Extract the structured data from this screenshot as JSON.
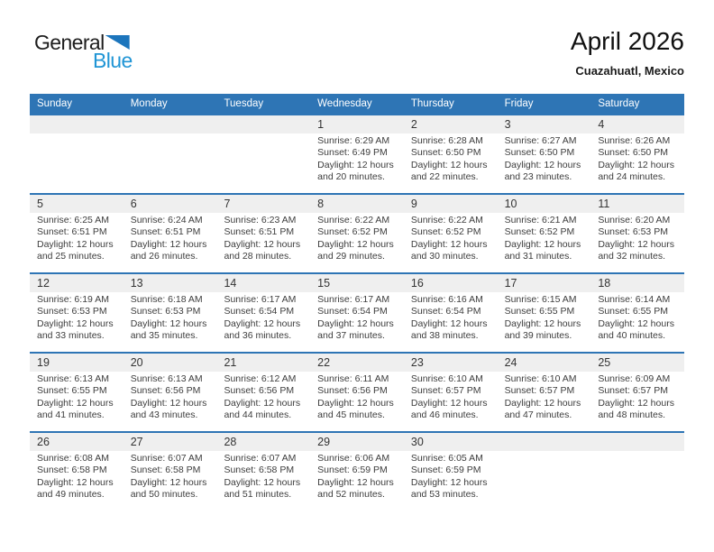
{
  "logo": {
    "general": "General",
    "blue": "Blue",
    "triangle_icon_color": "#1C75BC",
    "blue_text_color": "#2095D5"
  },
  "header": {
    "title": "April 2026",
    "location": "Cuazahuatl, Mexico"
  },
  "colors": {
    "header_bar": "#2E75B5",
    "row_border": "#2E75B5",
    "day_number_band": "#EFEFEF",
    "weekday_text": "#FFFFFF"
  },
  "weekdays": [
    "Sunday",
    "Monday",
    "Tuesday",
    "Wednesday",
    "Thursday",
    "Friday",
    "Saturday"
  ],
  "weeks": [
    [
      {
        "day": "",
        "lines": []
      },
      {
        "day": "",
        "lines": []
      },
      {
        "day": "",
        "lines": []
      },
      {
        "day": "1",
        "lines": [
          "Sunrise: 6:29 AM",
          "Sunset: 6:49 PM",
          "Daylight: 12 hours",
          "and 20 minutes."
        ]
      },
      {
        "day": "2",
        "lines": [
          "Sunrise: 6:28 AM",
          "Sunset: 6:50 PM",
          "Daylight: 12 hours",
          "and 22 minutes."
        ]
      },
      {
        "day": "3",
        "lines": [
          "Sunrise: 6:27 AM",
          "Sunset: 6:50 PM",
          "Daylight: 12 hours",
          "and 23 minutes."
        ]
      },
      {
        "day": "4",
        "lines": [
          "Sunrise: 6:26 AM",
          "Sunset: 6:50 PM",
          "Daylight: 12 hours",
          "and 24 minutes."
        ]
      }
    ],
    [
      {
        "day": "5",
        "lines": [
          "Sunrise: 6:25 AM",
          "Sunset: 6:51 PM",
          "Daylight: 12 hours",
          "and 25 minutes."
        ]
      },
      {
        "day": "6",
        "lines": [
          "Sunrise: 6:24 AM",
          "Sunset: 6:51 PM",
          "Daylight: 12 hours",
          "and 26 minutes."
        ]
      },
      {
        "day": "7",
        "lines": [
          "Sunrise: 6:23 AM",
          "Sunset: 6:51 PM",
          "Daylight: 12 hours",
          "and 28 minutes."
        ]
      },
      {
        "day": "8",
        "lines": [
          "Sunrise: 6:22 AM",
          "Sunset: 6:52 PM",
          "Daylight: 12 hours",
          "and 29 minutes."
        ]
      },
      {
        "day": "9",
        "lines": [
          "Sunrise: 6:22 AM",
          "Sunset: 6:52 PM",
          "Daylight: 12 hours",
          "and 30 minutes."
        ]
      },
      {
        "day": "10",
        "lines": [
          "Sunrise: 6:21 AM",
          "Sunset: 6:52 PM",
          "Daylight: 12 hours",
          "and 31 minutes."
        ]
      },
      {
        "day": "11",
        "lines": [
          "Sunrise: 6:20 AM",
          "Sunset: 6:53 PM",
          "Daylight: 12 hours",
          "and 32 minutes."
        ]
      }
    ],
    [
      {
        "day": "12",
        "lines": [
          "Sunrise: 6:19 AM",
          "Sunset: 6:53 PM",
          "Daylight: 12 hours",
          "and 33 minutes."
        ]
      },
      {
        "day": "13",
        "lines": [
          "Sunrise: 6:18 AM",
          "Sunset: 6:53 PM",
          "Daylight: 12 hours",
          "and 35 minutes."
        ]
      },
      {
        "day": "14",
        "lines": [
          "Sunrise: 6:17 AM",
          "Sunset: 6:54 PM",
          "Daylight: 12 hours",
          "and 36 minutes."
        ]
      },
      {
        "day": "15",
        "lines": [
          "Sunrise: 6:17 AM",
          "Sunset: 6:54 PM",
          "Daylight: 12 hours",
          "and 37 minutes."
        ]
      },
      {
        "day": "16",
        "lines": [
          "Sunrise: 6:16 AM",
          "Sunset: 6:54 PM",
          "Daylight: 12 hours",
          "and 38 minutes."
        ]
      },
      {
        "day": "17",
        "lines": [
          "Sunrise: 6:15 AM",
          "Sunset: 6:55 PM",
          "Daylight: 12 hours",
          "and 39 minutes."
        ]
      },
      {
        "day": "18",
        "lines": [
          "Sunrise: 6:14 AM",
          "Sunset: 6:55 PM",
          "Daylight: 12 hours",
          "and 40 minutes."
        ]
      }
    ],
    [
      {
        "day": "19",
        "lines": [
          "Sunrise: 6:13 AM",
          "Sunset: 6:55 PM",
          "Daylight: 12 hours",
          "and 41 minutes."
        ]
      },
      {
        "day": "20",
        "lines": [
          "Sunrise: 6:13 AM",
          "Sunset: 6:56 PM",
          "Daylight: 12 hours",
          "and 43 minutes."
        ]
      },
      {
        "day": "21",
        "lines": [
          "Sunrise: 6:12 AM",
          "Sunset: 6:56 PM",
          "Daylight: 12 hours",
          "and 44 minutes."
        ]
      },
      {
        "day": "22",
        "lines": [
          "Sunrise: 6:11 AM",
          "Sunset: 6:56 PM",
          "Daylight: 12 hours",
          "and 45 minutes."
        ]
      },
      {
        "day": "23",
        "lines": [
          "Sunrise: 6:10 AM",
          "Sunset: 6:57 PM",
          "Daylight: 12 hours",
          "and 46 minutes."
        ]
      },
      {
        "day": "24",
        "lines": [
          "Sunrise: 6:10 AM",
          "Sunset: 6:57 PM",
          "Daylight: 12 hours",
          "and 47 minutes."
        ]
      },
      {
        "day": "25",
        "lines": [
          "Sunrise: 6:09 AM",
          "Sunset: 6:57 PM",
          "Daylight: 12 hours",
          "and 48 minutes."
        ]
      }
    ],
    [
      {
        "day": "26",
        "lines": [
          "Sunrise: 6:08 AM",
          "Sunset: 6:58 PM",
          "Daylight: 12 hours",
          "and 49 minutes."
        ]
      },
      {
        "day": "27",
        "lines": [
          "Sunrise: 6:07 AM",
          "Sunset: 6:58 PM",
          "Daylight: 12 hours",
          "and 50 minutes."
        ]
      },
      {
        "day": "28",
        "lines": [
          "Sunrise: 6:07 AM",
          "Sunset: 6:58 PM",
          "Daylight: 12 hours",
          "and 51 minutes."
        ]
      },
      {
        "day": "29",
        "lines": [
          "Sunrise: 6:06 AM",
          "Sunset: 6:59 PM",
          "Daylight: 12 hours",
          "and 52 minutes."
        ]
      },
      {
        "day": "30",
        "lines": [
          "Sunrise: 6:05 AM",
          "Sunset: 6:59 PM",
          "Daylight: 12 hours",
          "and 53 minutes."
        ]
      },
      {
        "day": "",
        "lines": []
      },
      {
        "day": "",
        "lines": []
      }
    ]
  ]
}
